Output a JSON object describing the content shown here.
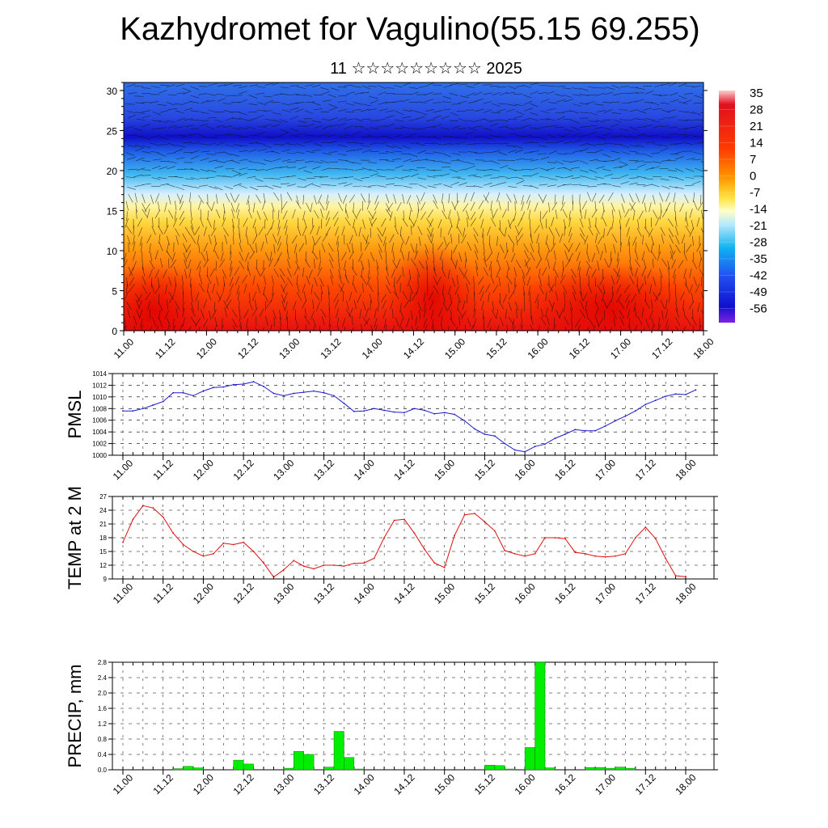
{
  "title": "Kazhydromet for Vagulino(55.15 69.255)",
  "subtitle": "11 ☆☆☆☆☆☆☆☆☆ 2025",
  "colors": {
    "pmsl": "#1a1acc",
    "temp": "#e01010",
    "precip": "#00ee00"
  },
  "x_tick_labels": [
    "11.00",
    "11.12",
    "12.00",
    "12.12",
    "13.00",
    "13.12",
    "14.00",
    "14.12",
    "15.00",
    "15.12",
    "16.00",
    "16.12",
    "17.00",
    "17.12",
    "18.00"
  ],
  "chart_data": [
    {
      "type": "heatmap",
      "xlabel": "",
      "ylabel": "",
      "ylim": [
        0,
        31
      ],
      "y_ticks": [
        0,
        5,
        10,
        15,
        20,
        25,
        30
      ],
      "colorbar_labels": [
        "35",
        "28",
        "21",
        "14",
        "7",
        "0",
        "-7",
        "-14",
        "-21",
        "-28",
        "-35",
        "-42",
        "-49",
        "-56"
      ],
      "colorbar_range": [
        -60,
        38
      ],
      "overlay": "wind vectors"
    },
    {
      "type": "line",
      "ylabel": "PMSL",
      "ylim": [
        1000,
        1014
      ],
      "y_ticks": [
        1000,
        1002,
        1004,
        1006,
        1008,
        1010,
        1012,
        1014
      ],
      "values": [
        1007.6,
        1007.6,
        1008.0,
        1008.6,
        1009.2,
        1010.7,
        1010.7,
        1010.2,
        1011.0,
        1011.6,
        1011.7,
        1012.1,
        1012.2,
        1012.6,
        1011.8,
        1010.6,
        1010.2,
        1010.6,
        1010.8,
        1011.0,
        1010.7,
        1010.2,
        1008.9,
        1007.5,
        1007.6,
        1008.0,
        1007.7,
        1007.4,
        1007.3,
        1008.0,
        1007.7,
        1007.1,
        1007.3,
        1007.0,
        1005.9,
        1004.5,
        1003.6,
        1003.3,
        1002.0,
        1000.9,
        1000.6,
        1001.5,
        1001.9,
        1002.9,
        1003.6,
        1004.4,
        1004.2,
        1004.2,
        1005.0,
        1005.9,
        1006.7,
        1007.6,
        1008.7,
        1009.4,
        1010.1,
        1010.5,
        1010.4,
        1011.2
      ]
    },
    {
      "type": "line",
      "ylabel": "TEMP at 2 M",
      "ylim": [
        9,
        27
      ],
      "y_ticks": [
        9,
        12,
        15,
        18,
        21,
        24,
        27
      ],
      "values": [
        17.0,
        22.0,
        25.0,
        24.5,
        22.5,
        19.0,
        16.5,
        15.0,
        14.0,
        14.5,
        16.8,
        16.5,
        17.0,
        15.0,
        12.5,
        9.4,
        11.0,
        13.0,
        11.8,
        11.2,
        12.0,
        12.0,
        11.8,
        12.4,
        12.5,
        13.5,
        18.0,
        21.8,
        22.0,
        19.0,
        15.5,
        12.5,
        11.5,
        18.5,
        23.0,
        23.3,
        21.5,
        19.5,
        15.2,
        14.5,
        14.0,
        14.5,
        18.0,
        18.0,
        17.8,
        14.8,
        14.5,
        14.0,
        13.8,
        14.0,
        14.5,
        18.0,
        20.3,
        17.8,
        13.5,
        9.7,
        9.5
      ]
    },
    {
      "type": "bar",
      "ylabel": "PRECIP, mm",
      "ylim": [
        0,
        2.8
      ],
      "y_ticks": [
        "0.0",
        "0.4",
        "0.8",
        "1.2",
        "1.6",
        "2.0",
        "2.4",
        "2.8"
      ],
      "bars": [
        {
          "t": 6,
          "v": 0.03
        },
        {
          "t": 7,
          "v": 0.09
        },
        {
          "t": 8,
          "v": 0.05
        },
        {
          "t": 12,
          "v": 0.25
        },
        {
          "t": 13,
          "v": 0.15
        },
        {
          "t": 17,
          "v": 0.04
        },
        {
          "t": 18,
          "v": 0.48
        },
        {
          "t": 19,
          "v": 0.4
        },
        {
          "t": 21,
          "v": 0.07
        },
        {
          "t": 22,
          "v": 1.0
        },
        {
          "t": 23,
          "v": 0.32
        },
        {
          "t": 24,
          "v": 0.02
        },
        {
          "t": 37,
          "v": 0.12
        },
        {
          "t": 38,
          "v": 0.11
        },
        {
          "t": 39,
          "v": 0.02
        },
        {
          "t": 41,
          "v": 0.58
        },
        {
          "t": 42,
          "v": 2.8
        },
        {
          "t": 43,
          "v": 0.05
        },
        {
          "t": 47,
          "v": 0.06
        },
        {
          "t": 48,
          "v": 0.06
        },
        {
          "t": 49,
          "v": 0.04
        },
        {
          "t": 50,
          "v": 0.07
        },
        {
          "t": 51,
          "v": 0.04
        }
      ]
    }
  ]
}
